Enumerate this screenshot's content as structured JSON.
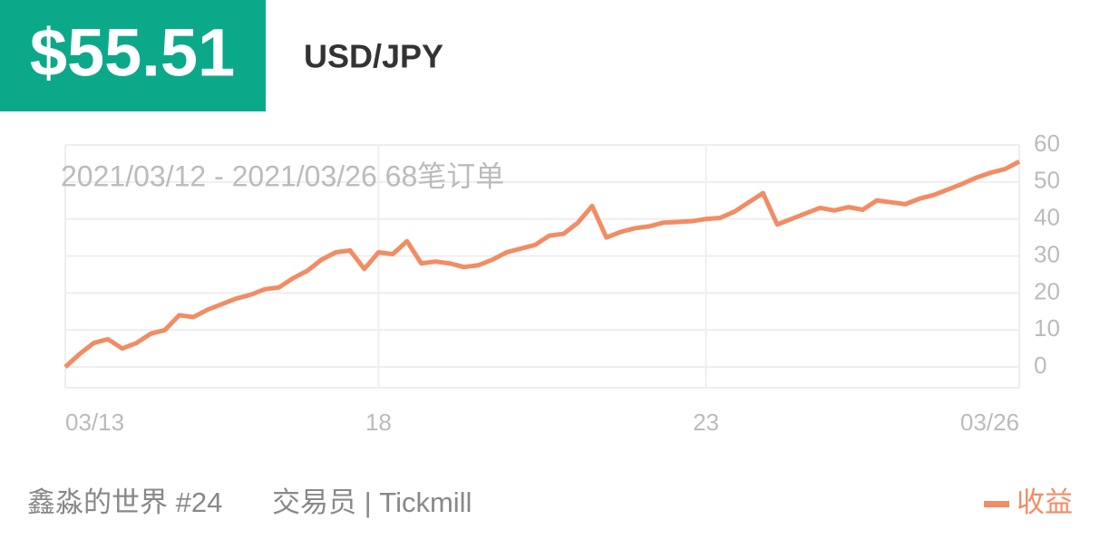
{
  "price": "$55.51",
  "pair": "USD/JPY",
  "footer": {
    "author": "鑫淼的世界 #24",
    "trader": "交易员 | Tickmill"
  },
  "chart_data": {
    "type": "line",
    "subtitle": "2021/03/12 - 2021/03/26  68笔订单",
    "categories": [
      "03/13",
      null,
      null,
      null,
      null,
      null,
      null,
      null,
      null,
      null,
      null,
      null,
      null,
      null,
      null,
      null,
      null,
      null,
      null,
      null,
      null,
      null,
      "18",
      null,
      null,
      null,
      null,
      null,
      null,
      null,
      null,
      null,
      null,
      null,
      null,
      null,
      null,
      null,
      null,
      null,
      null,
      null,
      null,
      null,
      null,
      "23",
      null,
      null,
      null,
      null,
      null,
      null,
      null,
      null,
      null,
      null,
      null,
      null,
      null,
      null,
      null,
      null,
      null,
      null,
      null,
      null,
      null,
      "03/26"
    ],
    "series": [
      {
        "name": "收益",
        "color": "#f28c64",
        "values": [
          0,
          3.5,
          6.5,
          7.5,
          5,
          6.5,
          9,
          10,
          14,
          13.5,
          15.5,
          17,
          18.5,
          19.5,
          21,
          21.5,
          24,
          26,
          29,
          31,
          31.5,
          26.5,
          31,
          30.5,
          34,
          28,
          28.5,
          28,
          27,
          27.5,
          29,
          31,
          32,
          33,
          35.5,
          36,
          39,
          43.5,
          35,
          36.5,
          37.5,
          38,
          39,
          39.2,
          39.4,
          40,
          40.3,
          42,
          44.5,
          47,
          38.5,
          40,
          41.5,
          43,
          42.3,
          43.2,
          42.5,
          45,
          44.5,
          44,
          45.5,
          46.5,
          48,
          49.5,
          51.2,
          52.5,
          53.5,
          55.5
        ]
      }
    ],
    "ylim": [
      -5.6,
      60
    ],
    "yticks": [
      0,
      10,
      20,
      30,
      40,
      50,
      60
    ],
    "grid": true,
    "legend": "bottom-right"
  }
}
